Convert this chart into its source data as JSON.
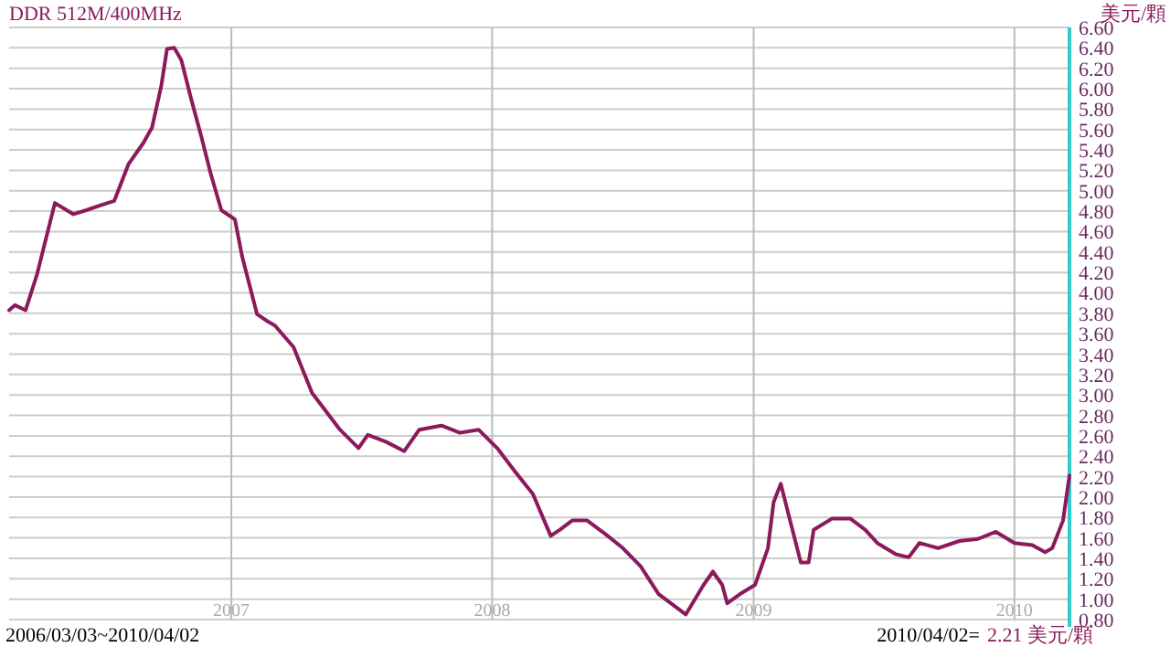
{
  "chart_data": {
    "type": "line",
    "title": "DDR 512M/400MHz",
    "ylabel": "美元/顆",
    "annotations": [
      "2006/03/03~2010/04/02",
      "2010/04/02=",
      "2.21 美元/顆"
    ],
    "xlim": [
      "2006-02-24",
      "2010-03-19"
    ],
    "xticks": [
      {
        "value": "2007-01-01",
        "label": "2007"
      },
      {
        "value": "2008-01-01",
        "label": "2008"
      },
      {
        "value": "2009-01-01",
        "label": "2009"
      },
      {
        "value": "2010-01-01",
        "label": "2010"
      }
    ],
    "ylim": [
      0.8,
      6.6
    ],
    "yticks": [
      {
        "value": 0.8,
        "label": "0.80"
      },
      {
        "value": 1.0,
        "label": "1.00"
      },
      {
        "value": 1.2,
        "label": "1.20"
      },
      {
        "value": 1.4,
        "label": "1.40"
      },
      {
        "value": 1.6,
        "label": "1.60"
      },
      {
        "value": 1.8,
        "label": "1.80"
      },
      {
        "value": 2.0,
        "label": "2.00"
      },
      {
        "value": 2.2,
        "label": "2.20"
      },
      {
        "value": 2.4,
        "label": "2.40"
      },
      {
        "value": 2.6,
        "label": "2.60"
      },
      {
        "value": 2.8,
        "label": "2.80"
      },
      {
        "value": 3.0,
        "label": "3.00"
      },
      {
        "value": 3.2,
        "label": "3.20"
      },
      {
        "value": 3.4,
        "label": "3.40"
      },
      {
        "value": 3.6,
        "label": "3.60"
      },
      {
        "value": 3.8,
        "label": "3.80"
      },
      {
        "value": 4.0,
        "label": "4.00"
      },
      {
        "value": 4.2,
        "label": "4.20"
      },
      {
        "value": 4.4,
        "label": "4.40"
      },
      {
        "value": 4.6,
        "label": "4.60"
      },
      {
        "value": 4.8,
        "label": "4.80"
      },
      {
        "value": 5.0,
        "label": "5.00"
      },
      {
        "value": 5.2,
        "label": "5.20"
      },
      {
        "value": 5.4,
        "label": "5.40"
      },
      {
        "value": 5.6,
        "label": "5.60"
      },
      {
        "value": 5.8,
        "label": "5.80"
      },
      {
        "value": 6.0,
        "label": "6.00"
      },
      {
        "value": 6.2,
        "label": "6.20"
      },
      {
        "value": 6.4,
        "label": "6.40"
      },
      {
        "value": 6.6,
        "label": "6.60"
      }
    ],
    "grid": true,
    "marker": "none",
    "line_style": "solid",
    "x": [
      "2006-02-24",
      "2006-03-04",
      "2006-03-19",
      "2006-04-04",
      "2006-04-29",
      "2006-05-25",
      "2006-06-12",
      "2006-07-03",
      "2006-07-21",
      "2006-08-10",
      "2006-08-31",
      "2006-09-12",
      "2006-09-25",
      "2006-10-03",
      "2006-10-13",
      "2006-10-23",
      "2006-11-05",
      "2006-11-20",
      "2006-12-03",
      "2006-12-18",
      "2007-01-06",
      "2007-01-16",
      "2007-02-06",
      "2007-02-21",
      "2007-03-03",
      "2007-03-29",
      "2007-04-24",
      "2007-06-02",
      "2007-06-28",
      "2007-07-11",
      "2007-08-06",
      "2007-08-31",
      "2007-09-21",
      "2007-10-22",
      "2007-11-17",
      "2007-12-13",
      "2008-01-08",
      "2008-02-02",
      "2008-02-27",
      "2008-03-23",
      "2008-04-05",
      "2008-04-22",
      "2008-05-13",
      "2008-06-07",
      "2008-07-02",
      "2008-07-27",
      "2008-08-21",
      "2008-09-28",
      "2008-10-23",
      "2008-11-05",
      "2008-11-18",
      "2008-11-25",
      "2008-12-13",
      "2009-01-03",
      "2009-01-21",
      "2009-01-29",
      "2009-02-08",
      "2009-02-21",
      "2009-03-08",
      "2009-03-19",
      "2009-03-26",
      "2009-04-21",
      "2009-05-16",
      "2009-06-06",
      "2009-06-23",
      "2009-07-19",
      "2009-08-06",
      "2009-08-21",
      "2009-09-16",
      "2009-10-16",
      "2009-11-11",
      "2009-12-06",
      "2010-01-01",
      "2010-01-26",
      "2010-02-13",
      "2010-02-23",
      "2010-03-10",
      "2010-03-19"
    ],
    "series": [
      {
        "color": "#8b1a5c",
        "values": [
          3.83,
          3.88,
          3.83,
          4.18,
          4.88,
          4.77,
          4.81,
          4.86,
          4.9,
          5.26,
          5.47,
          5.62,
          6.03,
          6.39,
          6.4,
          6.28,
          5.92,
          5.53,
          5.17,
          4.81,
          4.72,
          4.36,
          3.79,
          3.72,
          3.68,
          3.47,
          3.02,
          2.66,
          2.48,
          2.61,
          2.54,
          2.45,
          2.66,
          2.7,
          2.63,
          2.66,
          2.48,
          2.25,
          2.03,
          1.62,
          1.68,
          1.77,
          1.77,
          1.64,
          1.5,
          1.32,
          1.05,
          0.85,
          1.14,
          1.27,
          1.14,
          0.96,
          1.05,
          1.14,
          1.5,
          1.95,
          2.13,
          1.77,
          1.36,
          1.36,
          1.68,
          1.79,
          1.79,
          1.68,
          1.55,
          1.44,
          1.41,
          1.55,
          1.5,
          1.57,
          1.59,
          1.66,
          1.55,
          1.53,
          1.46,
          1.5,
          1.77,
          2.21
        ]
      }
    ]
  }
}
